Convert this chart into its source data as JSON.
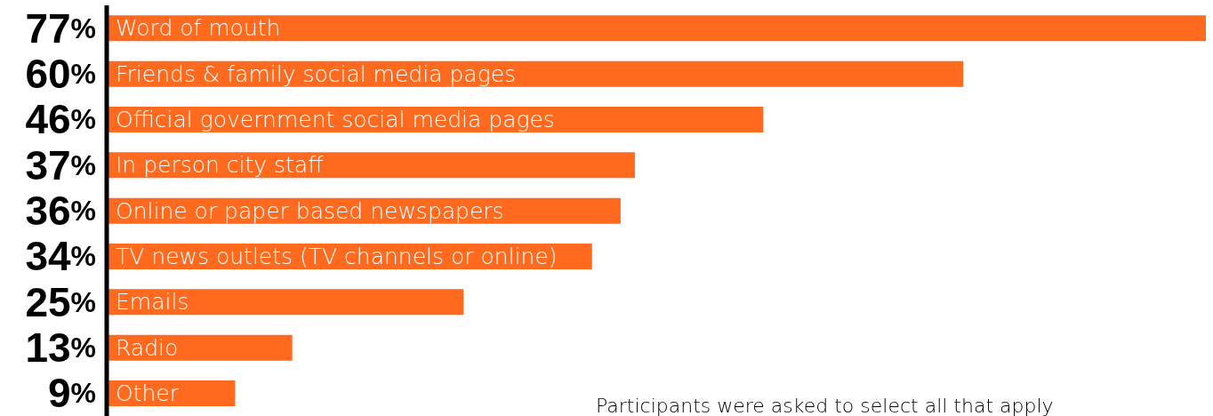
{
  "chart_data": {
    "type": "bar",
    "orientation": "horizontal",
    "categories": [
      "Word of mouth",
      "Friends & family social media pages",
      "Official government social media pages",
      "In person city staff",
      "Online or paper based newspapers",
      "TV news outlets (TV channels or online)",
      "Emails",
      "Radio",
      "Other"
    ],
    "values": [
      77,
      60,
      46,
      37,
      36,
      34,
      25,
      13,
      9
    ],
    "value_labels": [
      "77%",
      "60%",
      "46%",
      "37%",
      "36%",
      "34%",
      "25%",
      "13%",
      "9%"
    ],
    "color": "#ff6a1f",
    "annotations": [
      "Participants were asked to select all that apply"
    ]
  }
}
